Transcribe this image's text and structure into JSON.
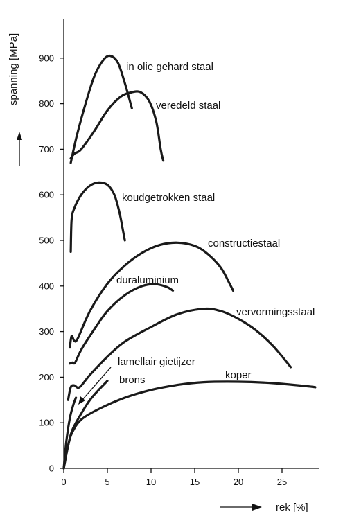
{
  "chart_data": {
    "type": "line",
    "xlabel": "rek [%]",
    "ylabel": "spanning [MPa]",
    "xlim": [
      0,
      30
    ],
    "ylim": [
      0,
      950
    ],
    "x_ticks": [
      0,
      5,
      10,
      15,
      20,
      25
    ],
    "y_ticks": [
      0,
      100,
      200,
      300,
      400,
      500,
      600,
      700,
      800,
      900
    ],
    "grid": false,
    "series": [
      {
        "name": "in olie gehard staal",
        "points": [
          [
            0.8,
            670
          ],
          [
            1.5,
            730
          ],
          [
            2.5,
            800
          ],
          [
            3.5,
            860
          ],
          [
            4.5,
            895
          ],
          [
            5.3,
            905
          ],
          [
            6.2,
            890
          ],
          [
            7.0,
            845
          ],
          [
            7.8,
            790
          ]
        ]
      },
      {
        "name": "veredeld staal",
        "points": [
          [
            0.8,
            680
          ],
          [
            1.2,
            690
          ],
          [
            2.0,
            700
          ],
          [
            3.5,
            740
          ],
          [
            5.0,
            785
          ],
          [
            6.5,
            815
          ],
          [
            7.8,
            825
          ],
          [
            8.8,
            825
          ],
          [
            9.8,
            805
          ],
          [
            10.6,
            760
          ],
          [
            11.1,
            700
          ],
          [
            11.4,
            675
          ]
        ]
      },
      {
        "name": "koudgetrokken staal",
        "points": [
          [
            0.8,
            475
          ],
          [
            0.9,
            545
          ],
          [
            1.2,
            570
          ],
          [
            2.0,
            600
          ],
          [
            3.0,
            620
          ],
          [
            4.0,
            627
          ],
          [
            5.0,
            622
          ],
          [
            5.8,
            600
          ],
          [
            6.4,
            560
          ],
          [
            6.8,
            520
          ],
          [
            7.0,
            500
          ]
        ]
      },
      {
        "name": "constructiestaal",
        "points": [
          [
            0.7,
            265
          ],
          [
            0.9,
            290
          ],
          [
            1.2,
            280
          ],
          [
            1.6,
            285
          ],
          [
            3.0,
            345
          ],
          [
            5.0,
            405
          ],
          [
            7.0,
            445
          ],
          [
            9.0,
            473
          ],
          [
            11.0,
            490
          ],
          [
            13.0,
            495
          ],
          [
            15.0,
            488
          ],
          [
            16.5,
            470
          ],
          [
            18.0,
            440
          ],
          [
            19.0,
            405
          ],
          [
            19.4,
            390
          ]
        ]
      },
      {
        "name": "duraluminium",
        "points": [
          [
            0.7,
            230
          ],
          [
            1.0,
            232
          ],
          [
            1.3,
            232
          ],
          [
            2.0,
            260
          ],
          [
            3.5,
            305
          ],
          [
            5.0,
            345
          ],
          [
            7.0,
            380
          ],
          [
            9.0,
            400
          ],
          [
            10.5,
            404
          ],
          [
            11.8,
            398
          ],
          [
            12.5,
            390
          ]
        ]
      },
      {
        "name": "vervormingsstaal",
        "points": [
          [
            0.5,
            150
          ],
          [
            0.8,
            178
          ],
          [
            1.2,
            182
          ],
          [
            1.8,
            178
          ],
          [
            3.0,
            205
          ],
          [
            5.0,
            245
          ],
          [
            7.0,
            278
          ],
          [
            10.0,
            310
          ],
          [
            13.0,
            338
          ],
          [
            16.0,
            350
          ],
          [
            18.0,
            345
          ],
          [
            20.0,
            328
          ],
          [
            22.0,
            303
          ],
          [
            24.0,
            268
          ],
          [
            26.0,
            222
          ]
        ]
      },
      {
        "name": "lamellair gietijzer",
        "points": [
          [
            0.0,
            0
          ],
          [
            0.3,
            60
          ],
          [
            0.7,
            110
          ],
          [
            1.1,
            140
          ],
          [
            1.4,
            155
          ]
        ]
      },
      {
        "name": "brons",
        "points": [
          [
            0.0,
            0
          ],
          [
            0.5,
            50
          ],
          [
            1.0,
            85
          ],
          [
            2.0,
            120
          ],
          [
            3.0,
            150
          ],
          [
            4.0,
            172
          ],
          [
            5.0,
            192
          ]
        ]
      },
      {
        "name": "koper",
        "points": [
          [
            0.0,
            0
          ],
          [
            0.5,
            50
          ],
          [
            1.0,
            80
          ],
          [
            2.0,
            107
          ],
          [
            4.0,
            130
          ],
          [
            7.0,
            155
          ],
          [
            10.0,
            172
          ],
          [
            13.0,
            183
          ],
          [
            16.0,
            189
          ],
          [
            20.0,
            190
          ],
          [
            24.0,
            187
          ],
          [
            28.0,
            180
          ],
          [
            28.8,
            178
          ]
        ]
      }
    ],
    "annotations": [
      {
        "series": "in olie gehard staal",
        "text": "in olie gehard staal"
      },
      {
        "series": "veredeld staal",
        "text": "veredeld staal"
      },
      {
        "series": "koudgetrokken staal",
        "text": "koudgetrokken staal"
      },
      {
        "series": "constructiestaal",
        "text": "constructiestaal"
      },
      {
        "series": "duraluminium",
        "text": "duraluminium"
      },
      {
        "series": "vervormingsstaal",
        "text": "vervormingsstaal"
      },
      {
        "series": "lamellair gietijzer",
        "text": "lamellair gietijzer"
      },
      {
        "series": "brons",
        "text": "brons"
      },
      {
        "series": "koper",
        "text": "koper"
      }
    ]
  }
}
